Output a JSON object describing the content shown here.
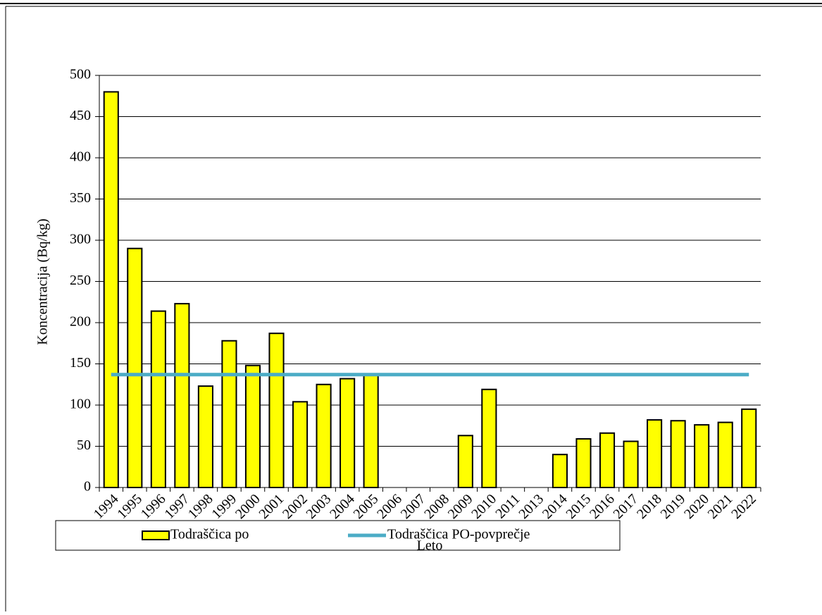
{
  "chart_data": {
    "type": "bar",
    "y_label": "Koncentracija (Bq/kg)",
    "x_label": "Leto",
    "categories": [
      "1994",
      "1995",
      "1996",
      "1997",
      "1998",
      "1999",
      "2000",
      "2001",
      "2002",
      "2003",
      "2004",
      "2005",
      "2006",
      "2007",
      "2008",
      "2009",
      "2010",
      "2011",
      "2013",
      "2014",
      "2015",
      "2016",
      "2017",
      "2018",
      "2019",
      "2020",
      "2021",
      "2022"
    ],
    "series": [
      {
        "name": "Todraščica po",
        "type": "bar",
        "color": "#ffff00",
        "values": [
          480,
          290,
          214,
          223,
          123,
          178,
          148,
          187,
          104,
          125,
          132,
          137,
          null,
          null,
          null,
          63,
          119,
          null,
          null,
          40,
          59,
          66,
          56,
          82,
          81,
          76,
          79,
          95
        ]
      },
      {
        "name": "Todraščica PO-povprečje",
        "type": "line",
        "color": "#4bacc6",
        "values": [
          137,
          137,
          137,
          137,
          137,
          137,
          137,
          137,
          137,
          137,
          137,
          137,
          137,
          137,
          137,
          137,
          137,
          137,
          137,
          137,
          137,
          137,
          137,
          137,
          137,
          137,
          137,
          137
        ]
      }
    ],
    "ylim": [
      0,
      500
    ],
    "yticks": [
      0,
      50,
      100,
      150,
      200,
      250,
      300,
      350,
      400,
      450,
      500
    ],
    "grid": true
  }
}
